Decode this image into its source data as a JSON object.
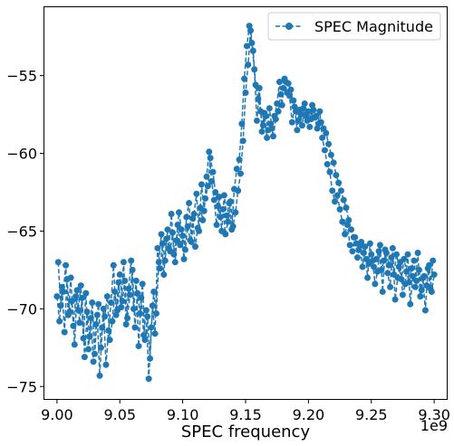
{
  "chart_data": {
    "type": "line",
    "xlabel": "SPEC frequency",
    "ylabel": "",
    "x_offset_label": "1e9",
    "xlim": [
      8990000000,
      9310000000
    ],
    "ylim": [
      -75.8,
      -50.6
    ],
    "x_ticks": [
      9000000000,
      9050000000,
      9100000000,
      9150000000,
      9200000000,
      9250000000,
      9300000000
    ],
    "x_tick_labels": [
      "9.00",
      "9.05",
      "9.10",
      "9.15",
      "9.20",
      "9.25",
      "9.30"
    ],
    "y_ticks": [
      -75,
      -70,
      -65,
      -60,
      -55
    ],
    "y_tick_labels": [
      "−75",
      "−70",
      "−65",
      "−60",
      "−55"
    ],
    "grid": false,
    "legend": {
      "placement": "top-right"
    },
    "series": [
      {
        "name": "SPEC Magnitude",
        "color": "#1f77b4",
        "linestyle": "dashed",
        "marker": "circle",
        "x": [
          9000000000,
          9002000000,
          9004000000,
          9006000000,
          9008000000,
          9010000000,
          9012000000,
          9014000000,
          9016000000,
          9018000000,
          9020000000,
          9022000000,
          9024000000,
          9026000000,
          9028000000,
          9030000000,
          9032000000,
          9034000000,
          9036000000,
          9038000000,
          9040000000,
          9042000000,
          9044000000,
          9046000000,
          9048000000,
          9050000000,
          9052000000,
          9054000000,
          9056000000,
          9058000000,
          9060000000,
          9062000000,
          9064000000,
          9066000000,
          9068000000,
          9070000000,
          9072000000,
          9074000000,
          9076000000,
          9078000000,
          9080000000,
          9082000000,
          9084000000,
          9086000000,
          9088000000,
          9090000000,
          9092000000,
          9094000000,
          9096000000,
          9098000000,
          9100000000,
          9102000000,
          9104000000,
          9106000000,
          9108000000,
          9110000000,
          9112000000,
          9114000000,
          9116000000,
          9118000000,
          9120000000,
          9122000000,
          9124000000,
          9126000000,
          9128000000,
          9130000000,
          9132000000,
          9134000000,
          9136000000,
          9138000000,
          9140000000,
          9142000000,
          9144000000,
          9146000000,
          9148000000,
          9150000000,
          9152000000,
          9154000000,
          9156000000,
          9158000000,
          9160000000,
          9162000000,
          9164000000,
          9166000000,
          9168000000,
          9170000000,
          9172000000,
          9174000000,
          9176000000,
          9178000000,
          9180000000,
          9182000000,
          9184000000,
          9186000000,
          9188000000,
          9190000000,
          9192000000,
          9194000000,
          9196000000,
          9198000000,
          9200000000,
          9202000000,
          9204000000,
          9206000000,
          9208000000,
          9210000000,
          9212000000,
          9214000000,
          9216000000,
          9218000000,
          9220000000,
          9222000000,
          9224000000,
          9226000000,
          9228000000,
          9230000000,
          9232000000,
          9234000000,
          9236000000,
          9238000000,
          9240000000,
          9242000000,
          9244000000,
          9246000000,
          9248000000,
          9250000000,
          9252000000,
          9254000000,
          9256000000,
          9258000000,
          9260000000,
          9262000000,
          9264000000,
          9266000000,
          9268000000,
          9270000000,
          9272000000,
          9274000000,
          9276000000,
          9278000000,
          9280000000,
          9282000000,
          9284000000,
          9286000000,
          9288000000,
          9290000000,
          9292000000,
          9294000000,
          9296000000,
          9298000000,
          9300000000
        ],
        "y": [
          -69.2,
          -70.8,
          -68.6,
          -71.5,
          -68.1,
          -70.2,
          -69.5,
          -72.3,
          -68.8,
          -70.9,
          -69.3,
          -73.1,
          -70.2,
          -71.8,
          -69.6,
          -72.9,
          -70.4,
          -74.3,
          -71.2,
          -70.5,
          -69.2,
          -72.0,
          -70.8,
          -68.9,
          -70.1,
          -67.8,
          -69.5,
          -68.2,
          -70.6,
          -69.1,
          -67.5,
          -71.2,
          -69.0,
          -70.3,
          -68.4,
          -72.0,
          -70.5,
          -73.2,
          -69.8,
          -71.6,
          -66.1,
          -67.4,
          -65.8,
          -66.9,
          -64.9,
          -66.3,
          -65.1,
          -67.0,
          -64.6,
          -65.9,
          -65.3,
          -66.2,
          -64.7,
          -65.6,
          -64.2,
          -66.0,
          -64.8,
          -63.5,
          -64.3,
          -62.9,
          -62.1,
          -60.3,
          -61.2,
          -62.5,
          -63.4,
          -64.1,
          -63.6,
          -65.2,
          -64.4,
          -63.1,
          -64.7,
          -63.8,
          -62.4,
          -61.3,
          -59.2,
          -56.1,
          -54.3,
          -52.1,
          -53.4,
          -55.6,
          -56.5,
          -57.3,
          -58.2,
          -57.6,
          -58.5,
          -58.1,
          -58.9,
          -57.8,
          -57.3,
          -56.2,
          -55.8,
          -55.4,
          -55.5,
          -55.9,
          -56.6,
          -57.3,
          -57.9,
          -57.5,
          -57.1,
          -57.6,
          -57.3,
          -57.8,
          -57.2,
          -57.6,
          -58.1,
          -58.0,
          -58.4,
          -58.7,
          -59.4,
          -60.1,
          -60.6,
          -61.4,
          -61.9,
          -62.4,
          -63.0,
          -63.5,
          -64.3,
          -64.9,
          -65.4,
          -65.8,
          -66.2,
          -65.7,
          -66.4,
          -66.8,
          -67.1,
          -66.5,
          -67.3,
          -66.8,
          -66.3,
          -67.5,
          -66.9,
          -66.4,
          -67.2,
          -66.7,
          -67.8,
          -66.5,
          -67.3,
          -68.1,
          -66.8,
          -67.6,
          -68.3,
          -67.4,
          -66.9,
          -68.2,
          -67.5,
          -68.8,
          -67.9,
          -68.5,
          -67.2,
          -68.9,
          -67.8
        ]
      },
      {
        "name": "",
        "color": "#1f77b4",
        "linestyle": "dashed",
        "marker": "circle",
        "x": [
          9001000000,
          9003000000,
          9005000000,
          9007000000,
          9009000000,
          9011000000,
          9013000000,
          9015000000,
          9017000000,
          9019000000,
          9021000000,
          9023000000,
          9025000000,
          9027000000,
          9029000000,
          9031000000,
          9033000000,
          9035000000,
          9037000000,
          9039000000,
          9041000000,
          9043000000,
          9045000000,
          9047000000,
          9049000000,
          9051000000,
          9053000000,
          9055000000,
          9057000000,
          9059000000,
          9061000000,
          9063000000,
          9065000000,
          9067000000,
          9069000000,
          9071000000,
          9073000000,
          9075000000,
          9077000000,
          9079000000,
          9081000000,
          9083000000,
          9085000000,
          9087000000,
          9089000000,
          9091000000,
          9093000000,
          9095000000,
          9097000000,
          9099000000,
          9101000000,
          9103000000,
          9105000000,
          9107000000,
          9109000000,
          9111000000,
          9113000000,
          9115000000,
          9117000000,
          9119000000,
          9121000000,
          9123000000,
          9125000000,
          9127000000,
          9129000000,
          9131000000,
          9133000000,
          9135000000,
          9137000000,
          9139000000,
          9141000000,
          9143000000,
          9145000000,
          9147000000,
          9149000000,
          9151000000,
          9153000000,
          9155000000,
          9157000000,
          9159000000,
          9161000000,
          9163000000,
          9165000000,
          9167000000,
          9169000000,
          9171000000,
          9173000000,
          9175000000,
          9177000000,
          9179000000,
          9181000000,
          9183000000,
          9185000000,
          9187000000,
          9189000000,
          9191000000,
          9193000000,
          9195000000,
          9197000000,
          9199000000,
          9201000000,
          9203000000,
          9205000000,
          9207000000,
          9209000000,
          9211000000,
          9213000000,
          9215000000,
          9217000000,
          9219000000,
          9221000000,
          9223000000,
          9225000000,
          9227000000,
          9229000000,
          9231000000,
          9233000000,
          9235000000,
          9237000000,
          9239000000,
          9241000000,
          9243000000,
          9245000000,
          9247000000,
          9249000000,
          9251000000,
          9253000000,
          9255000000,
          9257000000,
          9259000000,
          9261000000,
          9263000000,
          9265000000,
          9267000000,
          9269000000,
          9271000000,
          9273000000,
          9275000000,
          9277000000,
          9279000000,
          9281000000,
          9283000000,
          9285000000,
          9287000000,
          9289000000,
          9291000000,
          9293000000,
          9295000000,
          9297000000,
          9299000000
        ],
        "y": [
          -67.0,
          -69.8,
          -68.9,
          -67.2,
          -70.4,
          -68.0,
          -71.1,
          -69.2,
          -70.1,
          -68.5,
          -71.9,
          -69.0,
          -72.6,
          -70.6,
          -73.4,
          -71.0,
          -69.7,
          -72.5,
          -70.0,
          -73.6,
          -71.4,
          -69.6,
          -67.2,
          -70.4,
          -68.3,
          -69.9,
          -67.0,
          -71.0,
          -68.7,
          -66.9,
          -70.0,
          -68.2,
          -72.4,
          -69.3,
          -71.7,
          -70.1,
          -74.5,
          -71.2,
          -68.9,
          -70.3,
          -67.0,
          -65.2,
          -67.8,
          -65.5,
          -66.1,
          -63.9,
          -66.5,
          -65.6,
          -63.8,
          -64.9,
          -66.8,
          -64.1,
          -63.2,
          -65.7,
          -63.9,
          -62.6,
          -65.0,
          -62.0,
          -63.7,
          -61.5,
          -59.9,
          -61.8,
          -63.0,
          -64.6,
          -62.8,
          -65.0,
          -62.7,
          -64.0,
          -63.2,
          -64.9,
          -62.3,
          -61.0,
          -60.4,
          -58.1,
          -55.2,
          -53.1,
          -51.8,
          -52.9,
          -54.6,
          -57.9,
          -55.8,
          -58.6,
          -57.4,
          -59.0,
          -57.1,
          -58.4,
          -57.6,
          -56.8,
          -55.4,
          -56.9,
          -55.2,
          -56.1,
          -56.3,
          -58.0,
          -57.0,
          -58.5,
          -57.2,
          -58.2,
          -56.8,
          -57.9,
          -58.3,
          -56.9,
          -57.7,
          -58.4,
          -57.3,
          -59.0,
          -59.8,
          -60.7,
          -61.2,
          -62.4,
          -63.1,
          -62.7,
          -63.6,
          -64.4,
          -65.2,
          -64.6,
          -65.9,
          -66.3,
          -65.4,
          -66.7,
          -65.9,
          -67.3,
          -66.0,
          -68.0,
          -65.8,
          -66.9,
          -68.4,
          -67.6,
          -65.9,
          -68.9,
          -66.2,
          -67.7,
          -68.6,
          -66.1,
          -69.4,
          -68.0,
          -67.0,
          -69.1,
          -68.4,
          -66.5,
          -69.7,
          -67.9,
          -68.6,
          -66.4,
          -69.2,
          -68.0,
          -70.1,
          -67.4,
          -68.7,
          -66.9
        ]
      }
    ]
  }
}
